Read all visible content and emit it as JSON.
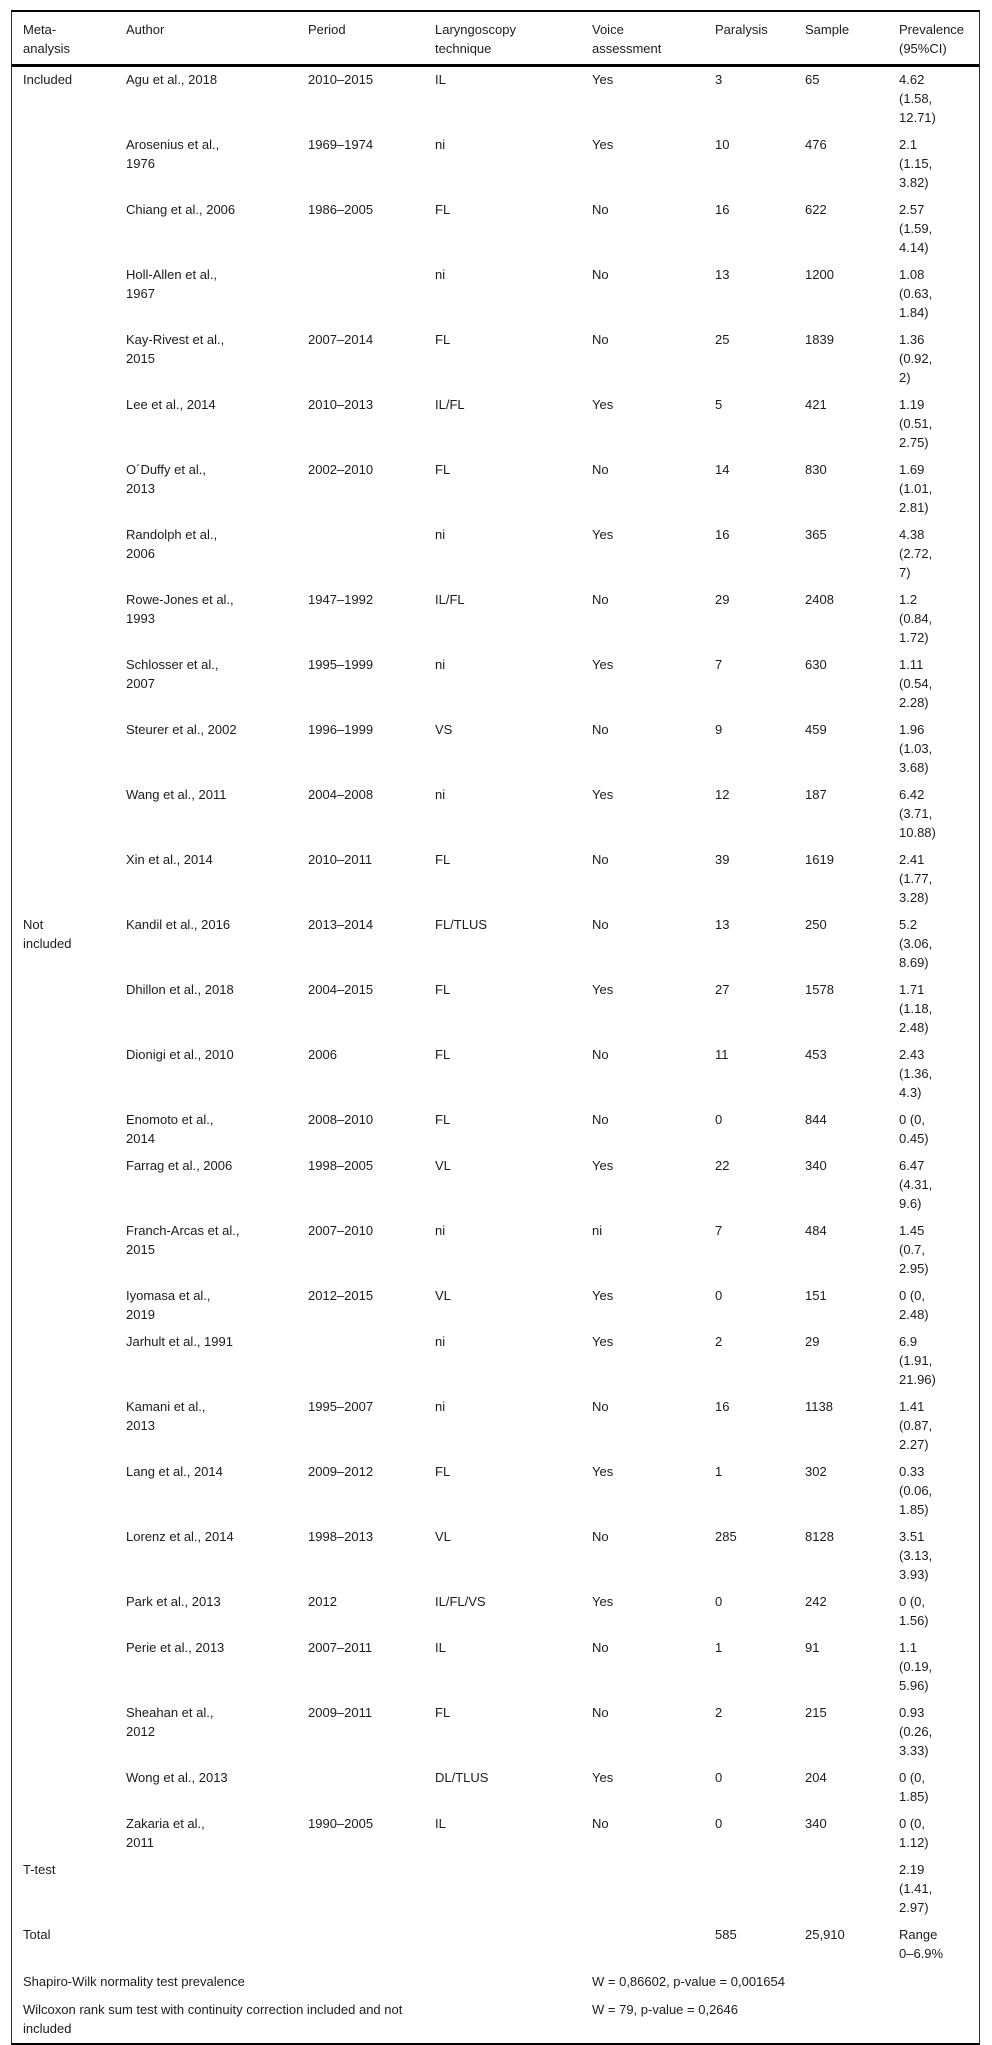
{
  "table": {
    "columns": [
      {
        "key": "group",
        "label": "Meta-\nanalysis"
      },
      {
        "key": "author",
        "label": "Author"
      },
      {
        "key": "period",
        "label": "Period"
      },
      {
        "key": "technique",
        "label": "Laryngoscopy\ntechnique"
      },
      {
        "key": "voice",
        "label": "Voice\nassessment"
      },
      {
        "key": "paralysis",
        "label": "Paralysis"
      },
      {
        "key": "sample",
        "label": "Sample"
      },
      {
        "key": "prevalence",
        "label": "Prevalence\n(95%CI)"
      }
    ],
    "rows": [
      {
        "group": "Included",
        "author": "Agu et al., 2018",
        "period": "2010–2015",
        "technique": "IL",
        "voice": "Yes",
        "paralysis": "3",
        "sample": "65",
        "prevalence": "4.62\n(1.58,\n12.71)"
      },
      {
        "group": "",
        "author": "Arosenius et al.,\n1976",
        "period": "1969–1974",
        "technique": "ni",
        "voice": "Yes",
        "paralysis": "10",
        "sample": "476",
        "prevalence": "2.1\n(1.15,\n3.82)"
      },
      {
        "group": "",
        "author": "Chiang et al., 2006",
        "period": "1986–2005",
        "technique": "FL",
        "voice": "No",
        "paralysis": "16",
        "sample": "622",
        "prevalence": "2.57\n(1.59,\n4.14)"
      },
      {
        "group": "",
        "author": "Holl-Allen et al.,\n1967",
        "period": "",
        "technique": "ni",
        "voice": "No",
        "paralysis": "13",
        "sample": "1200",
        "prevalence": "1.08\n(0.63,\n1.84)"
      },
      {
        "group": "",
        "author": "Kay-Rivest et al.,\n2015",
        "period": "2007–2014",
        "technique": "FL",
        "voice": "No",
        "paralysis": "25",
        "sample": "1839",
        "prevalence": "1.36\n(0.92,\n2)"
      },
      {
        "group": "",
        "author": "Lee et al., 2014",
        "period": "2010–2013",
        "technique": "IL/FL",
        "voice": "Yes",
        "paralysis": "5",
        "sample": "421",
        "prevalence": "1.19\n(0.51,\n2.75)"
      },
      {
        "group": "",
        "author": "O´Duffy et al.,\n2013",
        "period": "2002–2010",
        "technique": "FL",
        "voice": "No",
        "paralysis": "14",
        "sample": "830",
        "prevalence": "1.69\n(1.01,\n2.81)"
      },
      {
        "group": "",
        "author": "Randolph et al.,\n2006",
        "period": "",
        "technique": "ni",
        "voice": "Yes",
        "paralysis": "16",
        "sample": "365",
        "prevalence": "4.38\n(2.72,\n7)"
      },
      {
        "group": "",
        "author": "Rowe-Jones et al.,\n1993",
        "period": "1947–1992",
        "technique": "IL/FL",
        "voice": "No",
        "paralysis": "29",
        "sample": "2408",
        "prevalence": "1.2\n(0.84,\n1.72)"
      },
      {
        "group": "",
        "author": "Schlosser et al.,\n2007",
        "period": "1995–1999",
        "technique": "ni",
        "voice": "Yes",
        "paralysis": "7",
        "sample": "630",
        "prevalence": "1.11\n(0.54,\n2.28)"
      },
      {
        "group": "",
        "author": "Steurer et al., 2002",
        "period": "1996–1999",
        "technique": "VS",
        "voice": "No",
        "paralysis": "9",
        "sample": "459",
        "prevalence": "1.96\n(1.03,\n3.68)"
      },
      {
        "group": "",
        "author": "Wang et al., 2011",
        "period": "2004–2008",
        "technique": "ni",
        "voice": "Yes",
        "paralysis": "12",
        "sample": "187",
        "prevalence": "6.42\n(3.71,\n10.88)"
      },
      {
        "group": "",
        "author": "Xin et al., 2014",
        "period": "2010–2011",
        "technique": "FL",
        "voice": "No",
        "paralysis": "39",
        "sample": "1619",
        "prevalence": "2.41\n(1.77,\n3.28)"
      },
      {
        "group": "Not\nincluded",
        "author": "Kandil et al., 2016",
        "period": "2013–2014",
        "technique": "FL/TLUS",
        "voice": "No",
        "paralysis": "13",
        "sample": "250",
        "prevalence": "5.2\n(3.06,\n8.69)"
      },
      {
        "group": "",
        "author": "Dhillon et al., 2018",
        "period": "2004–2015",
        "technique": "FL",
        "voice": "Yes",
        "paralysis": "27",
        "sample": "1578",
        "prevalence": "1.71\n(1.18,\n2.48)"
      },
      {
        "group": "",
        "author": "Dionigi et al., 2010",
        "period": "2006",
        "technique": "FL",
        "voice": "No",
        "paralysis": "11",
        "sample": "453",
        "prevalence": "2.43\n(1.36,\n4.3)"
      },
      {
        "group": "",
        "author": "Enomoto et al.,\n2014",
        "period": "2008–2010",
        "technique": "FL",
        "voice": "No",
        "paralysis": "0",
        "sample": "844",
        "prevalence": "0 (0,\n0.45)"
      },
      {
        "group": "",
        "author": "Farrag et al., 2006",
        "period": "1998–2005",
        "technique": "VL",
        "voice": "Yes",
        "paralysis": "22",
        "sample": "340",
        "prevalence": "6.47\n(4.31,\n9.6)"
      },
      {
        "group": "",
        "author": "Franch-Arcas et al.,\n2015",
        "period": "2007–2010",
        "technique": "ni",
        "voice": "ni",
        "paralysis": "7",
        "sample": "484",
        "prevalence": "1.45\n(0.7,\n2.95)"
      },
      {
        "group": "",
        "author": "Iyomasa et al.,\n2019",
        "period": "2012–2015",
        "technique": "VL",
        "voice": "Yes",
        "paralysis": "0",
        "sample": "151",
        "prevalence": "0 (0,\n2.48)"
      },
      {
        "group": "",
        "author": "Jarhult et al., 1991",
        "period": "",
        "technique": "ni",
        "voice": "Yes",
        "paralysis": "2",
        "sample": "29",
        "prevalence": "6.9\n(1.91,\n21.96)"
      },
      {
        "group": "",
        "author": "Kamani et al.,\n2013",
        "period": "1995–2007",
        "technique": "ni",
        "voice": "No",
        "paralysis": "16",
        "sample": "1138",
        "prevalence": "1.41\n(0.87,\n2.27)"
      },
      {
        "group": "",
        "author": "Lang et al., 2014",
        "period": "2009–2012",
        "technique": "FL",
        "voice": "Yes",
        "paralysis": "1",
        "sample": "302",
        "prevalence": "0.33\n(0.06,\n1.85)"
      },
      {
        "group": "",
        "author": "Lorenz et al., 2014",
        "period": "1998–2013",
        "technique": "VL",
        "voice": "No",
        "paralysis": "285",
        "sample": "8128",
        "prevalence": "3.51\n(3.13,\n3.93)"
      },
      {
        "group": "",
        "author": "Park et al., 2013",
        "period": "2012",
        "technique": "IL/FL/VS",
        "voice": "Yes",
        "paralysis": "0",
        "sample": "242",
        "prevalence": "0 (0,\n1.56)"
      },
      {
        "group": "",
        "author": "Perie et al., 2013",
        "period": "2007–2011",
        "technique": "IL",
        "voice": "No",
        "paralysis": "1",
        "sample": "91",
        "prevalence": "1.1\n(0.19,\n5.96)"
      },
      {
        "group": "",
        "author": "Sheahan et al.,\n2012",
        "period": "2009–2011",
        "technique": "FL",
        "voice": "No",
        "paralysis": "2",
        "sample": "215",
        "prevalence": "0.93\n(0.26,\n3.33)"
      },
      {
        "group": "",
        "author": "Wong et al., 2013",
        "period": "",
        "technique": "DL/TLUS",
        "voice": "Yes",
        "paralysis": "0",
        "sample": "204",
        "prevalence": "0 (0,\n1.85)"
      },
      {
        "group": "",
        "author": "Zakaria et al.,\n2011",
        "period": "1990–2005",
        "technique": "IL",
        "voice": "No",
        "paralysis": "0",
        "sample": "340",
        "prevalence": "0 (0,\n1.12)"
      },
      {
        "group": "T-test",
        "author": "",
        "period": "",
        "technique": "",
        "voice": "",
        "paralysis": "",
        "sample": "",
        "prevalence": "2.19\n(1.41,\n2.97)"
      },
      {
        "group": "Total",
        "author": "",
        "period": "",
        "technique": "",
        "voice": "",
        "paralysis": "585",
        "sample": "25,910",
        "prevalence": "Range\n0–6.9%"
      }
    ],
    "stats": [
      {
        "label": "Shapiro-Wilk normality test prevalence",
        "value": "W = 0,86602, p-value = 0,001654"
      },
      {
        "label": "Wilcoxon rank sum test with continuity correction included and not\nincluded",
        "value": "W = 79, p-value = 0,2646"
      }
    ]
  }
}
